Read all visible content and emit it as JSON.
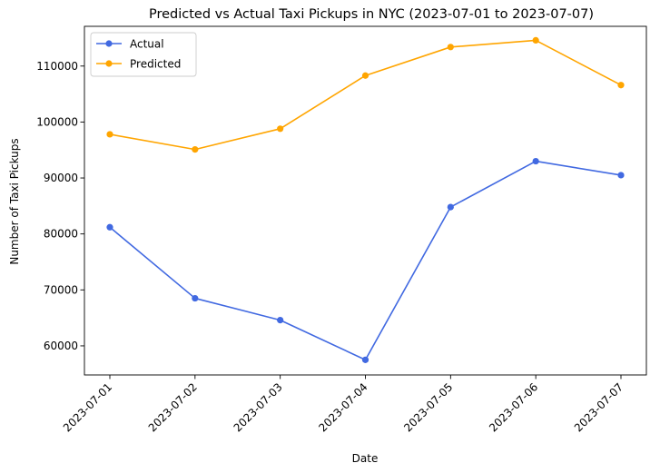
{
  "chart_data": {
    "type": "line",
    "title": "Predicted vs Actual Taxi Pickups in NYC (2023-07-01 to 2023-07-07)",
    "xlabel": "Date",
    "ylabel": "Number of Taxi Pickups",
    "categories": [
      "2023-07-01",
      "2023-07-02",
      "2023-07-03",
      "2023-07-04",
      "2023-07-05",
      "2023-07-06",
      "2023-07-07"
    ],
    "ylim": [
      54800,
      117100
    ],
    "yticks": [
      60000,
      70000,
      80000,
      90000,
      100000,
      110000
    ],
    "grid": false,
    "legend_position": "top-left",
    "series": [
      {
        "name": "Actual",
        "color": "#4169e1",
        "values": [
          81200,
          68500,
          64600,
          57500,
          84800,
          93000,
          90500
        ]
      },
      {
        "name": "Predicted",
        "color": "#ffa500",
        "values": [
          97800,
          95100,
          98800,
          108300,
          113400,
          114600,
          106600
        ]
      }
    ]
  }
}
